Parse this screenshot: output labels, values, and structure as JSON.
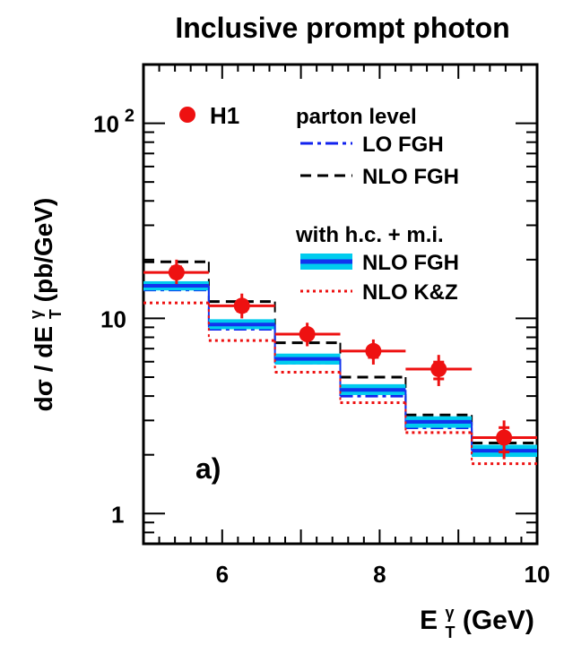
{
  "chart_data": {
    "type": "line",
    "title": "Inclusive prompt photon",
    "xlabel": "E_T^γ (GeV)",
    "ylabel": "dσ / dE_T^γ (pb/GeV)",
    "xlim": [
      5,
      10
    ],
    "ylim": [
      0.7,
      200
    ],
    "yscale": "log",
    "x_ticks": [
      {
        "value": 6,
        "label": "6"
      },
      {
        "value": 8,
        "label": "8"
      },
      {
        "value": 10,
        "label": "10"
      }
    ],
    "y_ticks": [
      {
        "value": 1,
        "label": "1"
      },
      {
        "value": 10,
        "label": "10"
      },
      {
        "value": 100,
        "label": "10",
        "exponent": "2"
      }
    ],
    "panel_label": "a)",
    "legend": {
      "data_label": "H1",
      "group1_title": "parton level",
      "group2_title": "with h.c. + m.i.",
      "placement": "top-right"
    },
    "bin_edges": [
      5.0,
      5.83,
      6.67,
      7.5,
      8.33,
      9.17,
      10.0
    ],
    "data": {
      "name": "H1",
      "color": "#ee1111",
      "x": [
        5.42,
        6.25,
        7.08,
        7.92,
        8.75,
        9.58
      ],
      "x_lo": [
        5.0,
        5.83,
        6.67,
        7.5,
        8.33,
        9.17
      ],
      "x_hi": [
        5.83,
        6.67,
        7.5,
        8.33,
        9.17,
        10.0
      ],
      "y": [
        17.2,
        11.6,
        8.3,
        6.8,
        5.5,
        2.45
      ],
      "err_lo": [
        15.0,
        10.0,
        7.2,
        5.8,
        4.5,
        1.9
      ],
      "err_hi": [
        20.0,
        13.4,
        9.5,
        7.8,
        6.5,
        3.0
      ]
    },
    "series": [
      {
        "name": "LO FGH",
        "group": 1,
        "style": "dashdot",
        "color": "#1122ee",
        "values": [
          14.0,
          8.8,
          5.9,
          4.0,
          2.75,
          2.0
        ]
      },
      {
        "name": "NLO FGH",
        "group": 1,
        "style": "dashed",
        "color": "#000000",
        "values": [
          19.5,
          12.2,
          7.5,
          5.0,
          3.2,
          2.3
        ]
      },
      {
        "name": "NLO FGH",
        "group": 2,
        "style": "band",
        "color": "#1133ee",
        "band_color": "#00ccee",
        "values": [
          14.7,
          9.3,
          6.2,
          4.3,
          2.95,
          2.1
        ],
        "lo": [
          13.9,
          8.8,
          5.8,
          4.05,
          2.75,
          1.95
        ],
        "hi": [
          15.5,
          9.9,
          6.6,
          4.6,
          3.15,
          2.25
        ]
      },
      {
        "name": "NLO K&Z",
        "group": 2,
        "style": "dotted",
        "color": "#ee1111",
        "values": [
          12.0,
          7.7,
          5.3,
          3.7,
          2.6,
          1.8
        ]
      }
    ]
  }
}
